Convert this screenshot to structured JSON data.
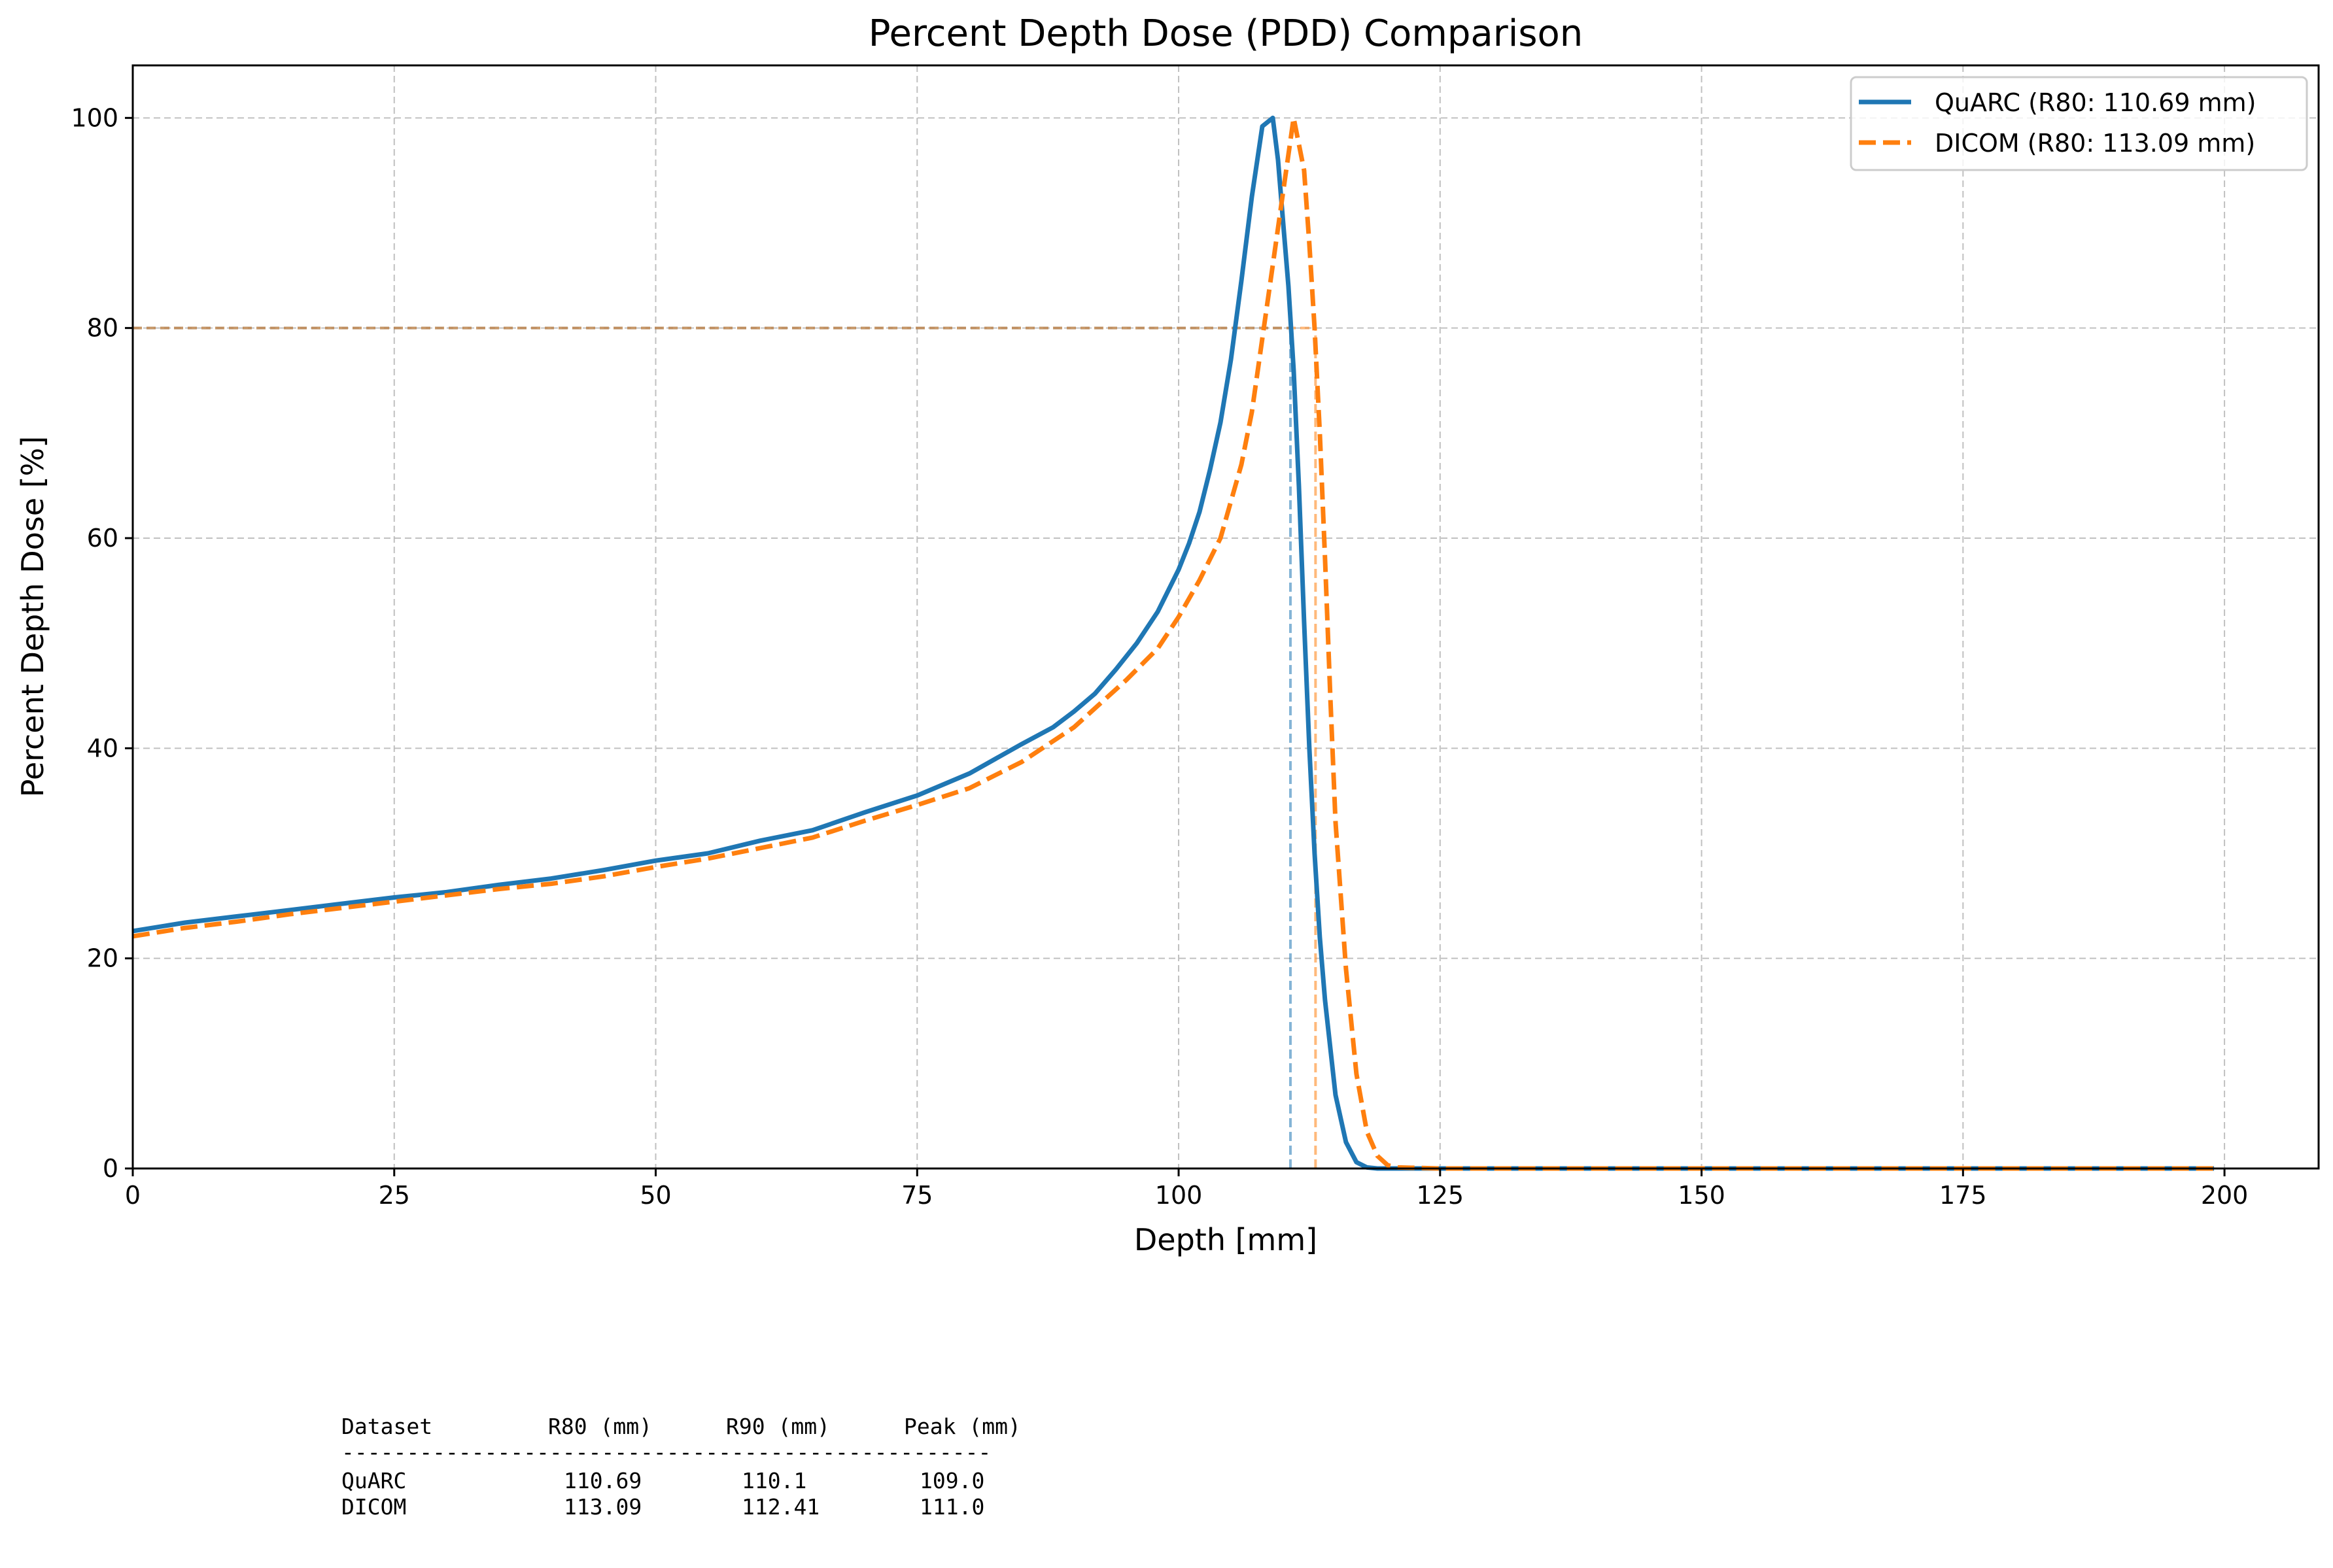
{
  "chart_data": {
    "type": "line",
    "title": "Percent Depth Dose (PDD) Comparison",
    "xlabel": "Depth [mm]",
    "ylabel": "Percent Depth Dose [%]",
    "xlim": [
      0,
      209
    ],
    "ylim": [
      0,
      105
    ],
    "xticks": [
      0,
      25,
      50,
      75,
      100,
      125,
      150,
      175,
      200
    ],
    "yticks": [
      0,
      20,
      40,
      60,
      80,
      100
    ],
    "grid": true,
    "legend_position": "top-right",
    "reference_lines": {
      "horizontal_y": 80,
      "vertical_x": [
        110.69,
        113.09
      ]
    },
    "series": [
      {
        "name": "QuARC (R80: 110.69 mm)",
        "color": "#1f77b4",
        "style": "solid",
        "x": [
          0,
          5,
          10,
          15,
          20,
          25,
          30,
          35,
          40,
          45,
          50,
          55,
          60,
          65,
          70,
          75,
          80,
          85,
          88,
          90,
          92,
          94,
          96,
          98,
          100,
          101,
          102,
          103,
          104,
          105,
          106,
          107,
          108,
          109,
          109.5,
          110,
          110.5,
          111,
          111.5,
          112,
          112.5,
          113,
          113.5,
          114,
          115,
          116,
          117,
          118,
          119,
          120,
          125,
          150,
          175,
          199
        ],
        "y": [
          22.6,
          23.4,
          24.0,
          24.6,
          25.2,
          25.8,
          26.3,
          27.0,
          27.6,
          28.4,
          29.3,
          30.0,
          31.2,
          32.2,
          33.9,
          35.5,
          37.6,
          40.4,
          42.0,
          43.5,
          45.2,
          47.5,
          50.0,
          53.0,
          57.0,
          59.5,
          62.5,
          66.5,
          71.0,
          77.0,
          84.5,
          92.5,
          99.2,
          100.0,
          96.0,
          90.0,
          84.0,
          76.0,
          65.0,
          52.0,
          40.0,
          30.0,
          22.0,
          16.0,
          7.0,
          2.5,
          0.6,
          0.1,
          0.0,
          0.0,
          0.0,
          0.0,
          0.0,
          0.0
        ]
      },
      {
        "name": "DICOM (R80: 113.09 mm)",
        "color": "#ff7f0e",
        "style": "dashed",
        "x": [
          0,
          5,
          10,
          15,
          20,
          25,
          30,
          35,
          40,
          45,
          50,
          55,
          60,
          65,
          70,
          75,
          80,
          85,
          90,
          95,
          98,
          100,
          102,
          104,
          106,
          107,
          108,
          109,
          110,
          111,
          112,
          112.5,
          113,
          113.5,
          114,
          114.5,
          115,
          116,
          117,
          118,
          119,
          120,
          121,
          125,
          150,
          175,
          199
        ],
        "y": [
          22.1,
          22.9,
          23.5,
          24.2,
          24.8,
          25.4,
          26.0,
          26.6,
          27.1,
          27.8,
          28.7,
          29.5,
          30.5,
          31.5,
          33.1,
          34.6,
          36.2,
          38.7,
          42.0,
          46.5,
          49.5,
          52.5,
          56.0,
          60.0,
          67.0,
          72.0,
          79.0,
          86.0,
          93.0,
          100.0,
          95.0,
          88.0,
          80.0,
          70.0,
          58.0,
          45.0,
          33.0,
          19.0,
          9.0,
          3.5,
          1.2,
          0.3,
          0.1,
          0.0,
          0.0,
          0.0,
          0.0
        ]
      }
    ]
  },
  "summary_table": {
    "headers": [
      "Dataset",
      "R80 (mm)",
      "R90 (mm)",
      "Peak (mm)"
    ],
    "separator": "--------------------------------------------------",
    "rows": [
      [
        "QuARC",
        "110.69",
        "110.1",
        "109.0"
      ],
      [
        "DICOM",
        "113.09",
        "112.41",
        "111.0"
      ]
    ]
  }
}
